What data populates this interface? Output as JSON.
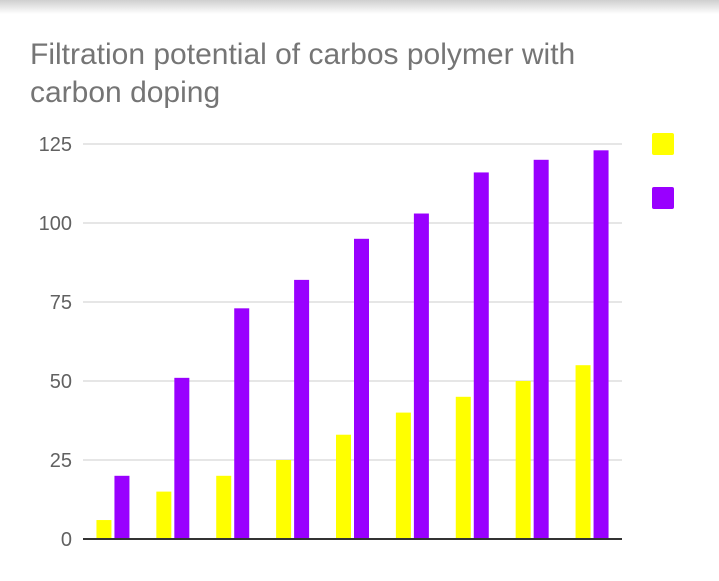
{
  "chart_data": {
    "type": "bar",
    "title": "Filtration potential of carbos polymer with carbon doping",
    "categories": [
      "",
      "",
      "",
      "",
      "",
      "",
      "",
      "",
      ""
    ],
    "series": [
      {
        "color": "#ffff00",
        "values": [
          6,
          15,
          20,
          25,
          33,
          40,
          45,
          50,
          55
        ]
      },
      {
        "color": "#9900ff",
        "values": [
          20,
          51,
          73,
          82,
          95,
          103,
          116,
          120,
          123
        ]
      }
    ],
    "ylim": [
      0,
      125
    ],
    "yticks": [
      "0",
      "25",
      "50",
      "75",
      "100",
      "125"
    ],
    "grid": true,
    "legend_position": "right"
  }
}
